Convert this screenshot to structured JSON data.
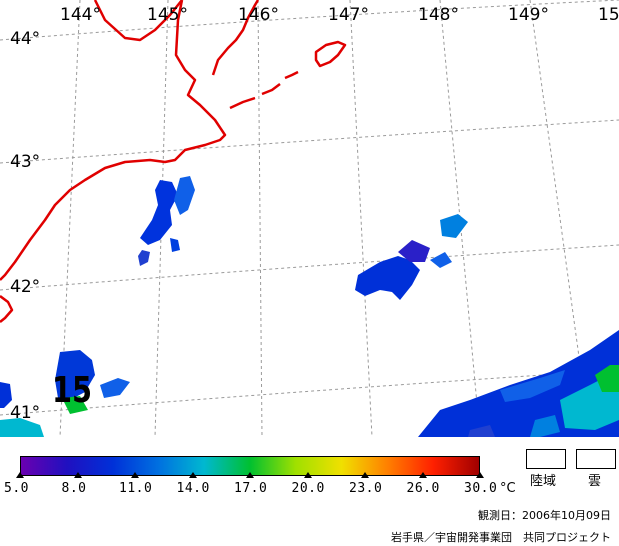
{
  "map": {
    "longitude_labels": [
      "144°",
      "145°",
      "146°",
      "147°",
      "148°",
      "149°",
      "15"
    ],
    "latitude_labels": [
      "44°",
      "43°",
      "42°",
      "41°"
    ],
    "coast_color": "#e00000",
    "grid_color": "#9a9a9a",
    "sst_marker": "15"
  },
  "legend": {
    "ticks": [
      "5.0",
      "8.0",
      "11.0",
      "14.0",
      "17.0",
      "20.0",
      "23.0",
      "26.0",
      "30.0"
    ],
    "unit": "°C",
    "colors": [
      "#6a00b0",
      "#2010c0",
      "#0030d8",
      "#0070e0",
      "#00b8d0",
      "#00c030",
      "#a0e000",
      "#f0e000",
      "#ff8000",
      "#ff2000",
      "#a00000"
    ]
  },
  "key": {
    "land_label": "陸域",
    "cloud_label": "雲"
  },
  "footer": {
    "observation_date": "観測日：2006年10月09日",
    "credit": "岩手県／宇宙開発事業団　共同プロジェクト"
  }
}
